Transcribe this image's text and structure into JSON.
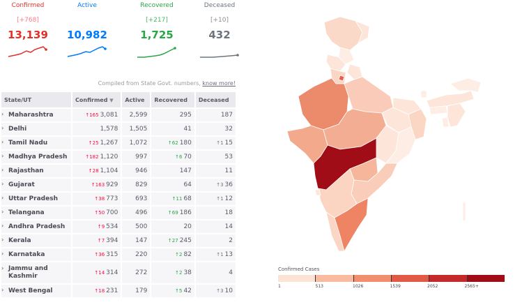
{
  "stats": [
    {
      "label": "Confirmed",
      "delta": "[+768]",
      "value": "13,139",
      "color": "#e23028"
    },
    {
      "label": "Active",
      "delta": "",
      "value": "10,982",
      "color": "#007bff"
    },
    {
      "label": "Recovered",
      "delta": "[+217]",
      "value": "1,725",
      "color": "#28a745"
    },
    {
      "label": "Deceased",
      "delta": "[+10]",
      "value": "432",
      "color": "#6c757d"
    }
  ],
  "compiled_text": "Compiled from State Govt. numbers,",
  "know_more": "know more!",
  "table": {
    "headers": [
      "State/UT",
      "Confirmed",
      "Active",
      "Recovered",
      "Deceased"
    ],
    "rows": [
      {
        "name": "Maharashtra",
        "c_delta": "165",
        "confirmed": "3,081",
        "active": "2,599",
        "r_delta": "",
        "recovered": "295",
        "d_delta": "",
        "deceased": "187"
      },
      {
        "name": "Delhi",
        "c_delta": "",
        "confirmed": "1,578",
        "active": "1,505",
        "r_delta": "",
        "recovered": "41",
        "d_delta": "",
        "deceased": "32"
      },
      {
        "name": "Tamil Nadu",
        "c_delta": "25",
        "confirmed": "1,267",
        "active": "1,072",
        "r_delta": "62",
        "recovered": "180",
        "d_delta": "1",
        "deceased": "15"
      },
      {
        "name": "Madhya Pradesh",
        "c_delta": "182",
        "confirmed": "1,120",
        "active": "997",
        "r_delta": "6",
        "recovered": "70",
        "d_delta": "",
        "deceased": "53"
      },
      {
        "name": "Rajasthan",
        "c_delta": "28",
        "confirmed": "1,104",
        "active": "946",
        "r_delta": "",
        "recovered": "147",
        "d_delta": "",
        "deceased": "11"
      },
      {
        "name": "Gujarat",
        "c_delta": "163",
        "confirmed": "929",
        "active": "829",
        "r_delta": "",
        "recovered": "64",
        "d_delta": "3",
        "deceased": "36"
      },
      {
        "name": "Uttar Pradesh",
        "c_delta": "38",
        "confirmed": "773",
        "active": "693",
        "r_delta": "11",
        "recovered": "68",
        "d_delta": "1",
        "deceased": "12"
      },
      {
        "name": "Telangana",
        "c_delta": "50",
        "confirmed": "700",
        "active": "496",
        "r_delta": "69",
        "recovered": "186",
        "d_delta": "",
        "deceased": "18"
      },
      {
        "name": "Andhra Pradesh",
        "c_delta": "9",
        "confirmed": "534",
        "active": "500",
        "r_delta": "",
        "recovered": "20",
        "d_delta": "",
        "deceased": "14"
      },
      {
        "name": "Kerala",
        "c_delta": "7",
        "confirmed": "394",
        "active": "147",
        "r_delta": "27",
        "recovered": "245",
        "d_delta": "",
        "deceased": "2"
      },
      {
        "name": "Karnataka",
        "c_delta": "36",
        "confirmed": "315",
        "active": "220",
        "r_delta": "2",
        "recovered": "82",
        "d_delta": "1",
        "deceased": "13"
      },
      {
        "name": "Jammu and Kashmir",
        "c_delta": "14",
        "confirmed": "314",
        "active": "272",
        "r_delta": "2",
        "recovered": "38",
        "d_delta": "",
        "deceased": "4"
      },
      {
        "name": "West Bengal",
        "c_delta": "18",
        "confirmed": "231",
        "active": "179",
        "r_delta": "5",
        "recovered": "42",
        "d_delta": "3",
        "deceased": "10"
      }
    ]
  },
  "legend": {
    "title": "Confirmed Cases",
    "ticks": [
      "1",
      "513",
      "1026",
      "1539",
      "2052",
      "2565+"
    ],
    "colors": [
      "#fde2d6",
      "#f8bba0",
      "#f08e6d",
      "#e05a45",
      "#c52a2a",
      "#a00d17"
    ]
  },
  "map_colors": {
    "maharashtra": "#a10d17",
    "rajasthan": "#ec8a6c",
    "mp": "#f3ad93",
    "gujarat": "#f2a98c",
    "up": "#f9cbb8",
    "delhi": "#e9604a",
    "tamilnadu": "#ee8463",
    "telangana": "#f5b69c",
    "andhra": "#f9cdb9",
    "kerala": "#fbd6c4",
    "karnataka": "#fbd5c2",
    "jk": "#fbd9c9",
    "light": "#fde5da",
    "lighter": "#feede5"
  }
}
